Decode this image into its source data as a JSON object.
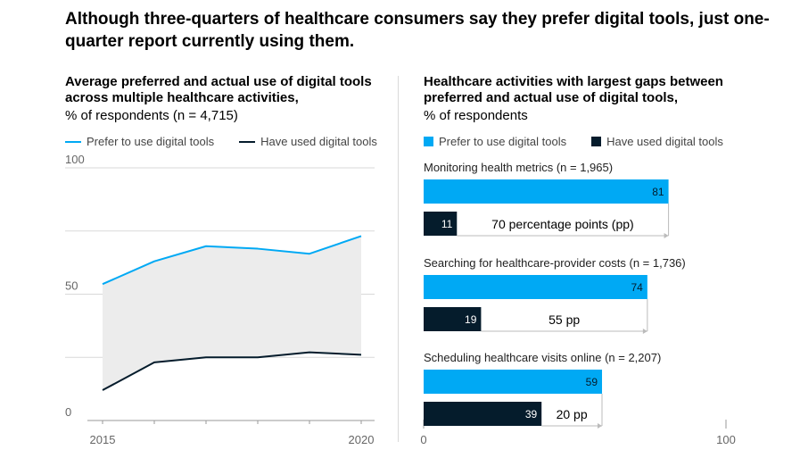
{
  "title": "Although three-quarters of healthcare consumers say they prefer digital tools, just one-quarter report currently using them.",
  "colors": {
    "prefer": "#00a9f4",
    "used": "#051c2c",
    "gap_fill": "#ececec",
    "grid": "#d9d9d9"
  },
  "left_panel": {
    "title": "Average preferred and actual use of digital tools across multiple healthcare activities,",
    "subtitle": "% of respondents (n = 4,715)",
    "legend": {
      "prefer": "Prefer to use digital tools",
      "used": "Have used digital tools"
    }
  },
  "right_panel": {
    "title": "Healthcare activities with largest gaps between preferred and actual use of digital tools,",
    "subtitle": "% of respondents",
    "legend": {
      "prefer": "Prefer to use digital tools",
      "used": "Have used digital tools"
    }
  },
  "chart_data": [
    {
      "type": "line",
      "x": [
        2015,
        2016,
        2017,
        2018,
        2019,
        2020
      ],
      "x_tick_labels": [
        "2015",
        "2020"
      ],
      "series": [
        {
          "name": "Prefer to use digital tools",
          "values": [
            54,
            63,
            69,
            68,
            66,
            73
          ]
        },
        {
          "name": "Have used digital tools",
          "values": [
            12,
            23,
            25,
            25,
            27,
            26
          ]
        }
      ],
      "ylim": [
        0,
        100
      ],
      "y_ticks": [
        0,
        50,
        100
      ],
      "y_tick_labels": [
        "0",
        "50",
        "100"
      ],
      "grid": true,
      "legend_position": "top-left"
    },
    {
      "type": "bar",
      "orientation": "horizontal",
      "xlim": [
        0,
        100
      ],
      "x_tick_labels": [
        "0",
        "100"
      ],
      "legend_position": "top-left",
      "categories": [
        "Monitoring health metrics (n = 1,965)",
        "Searching for healthcare-provider costs (n = 1,736)",
        "Scheduling healthcare visits online (n = 2,207)"
      ],
      "series": [
        {
          "name": "Prefer to use digital tools",
          "values": [
            81,
            74,
            59
          ],
          "labels": [
            "81",
            "74",
            "59"
          ]
        },
        {
          "name": "Have used digital tools",
          "values": [
            11,
            19,
            39
          ],
          "labels": [
            "11",
            "19",
            "39"
          ]
        }
      ],
      "gap_labels": [
        "70 percentage points (pp)",
        "55 pp",
        "20 pp"
      ]
    }
  ]
}
